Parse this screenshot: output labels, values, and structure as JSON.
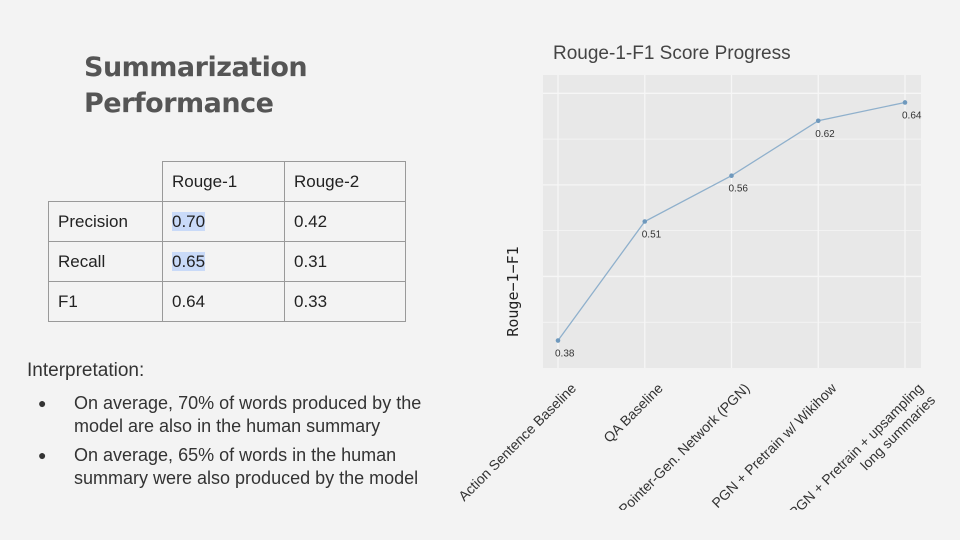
{
  "slide": {
    "title_line1": "Summarization",
    "title_line2": "Performance"
  },
  "table": {
    "headers": [
      "Rouge-1",
      "Rouge-2"
    ],
    "rows": [
      {
        "label": "Precision",
        "rouge1": "0.70",
        "rouge2": "0.42",
        "highlight": true
      },
      {
        "label": "Recall",
        "rouge1": "0.65",
        "rouge2": "0.31",
        "highlight": true
      },
      {
        "label": "F1",
        "rouge1": "0.64",
        "rouge2": "0.33",
        "highlight": false
      }
    ]
  },
  "interpretation": {
    "heading": "Interpretation:",
    "bullets": [
      "On average, 70% of words produced by the model are also in the human summary",
      "On average, 65% of words in the human summary were also produced by the model"
    ]
  },
  "chart_data": {
    "type": "line",
    "title": "Rouge-1-F1 Score Progress",
    "ylabel": "Rouge−1−F1",
    "xlabel": "",
    "categories": [
      "Action Sentence Baseline",
      "QA Baseline",
      "Pointer-Gen. Network (PGN)",
      "PGN + Pretrain w/ Wikihow",
      "PGN + Pretrain + upsampling long summaries"
    ],
    "category_lines": [
      [
        "Action Sentence Baseline"
      ],
      [
        "QA Baseline"
      ],
      [
        "Pointer-Gen. Network (PGN)"
      ],
      [
        "PGN + Pretrain w/ Wikihow"
      ],
      [
        "PGN + Pretrain + upsampling",
        "long summaries"
      ]
    ],
    "values": [
      0.38,
      0.51,
      0.56,
      0.62,
      0.64
    ],
    "value_labels": [
      "0.38",
      "0.51",
      "0.56",
      "0.62",
      "0.64"
    ],
    "ylim": [
      0.35,
      0.67
    ],
    "grid": true,
    "line_color": "#8fb0cc",
    "plot_bg": "#e8e8e8",
    "grid_color": "#f6f6f6"
  }
}
